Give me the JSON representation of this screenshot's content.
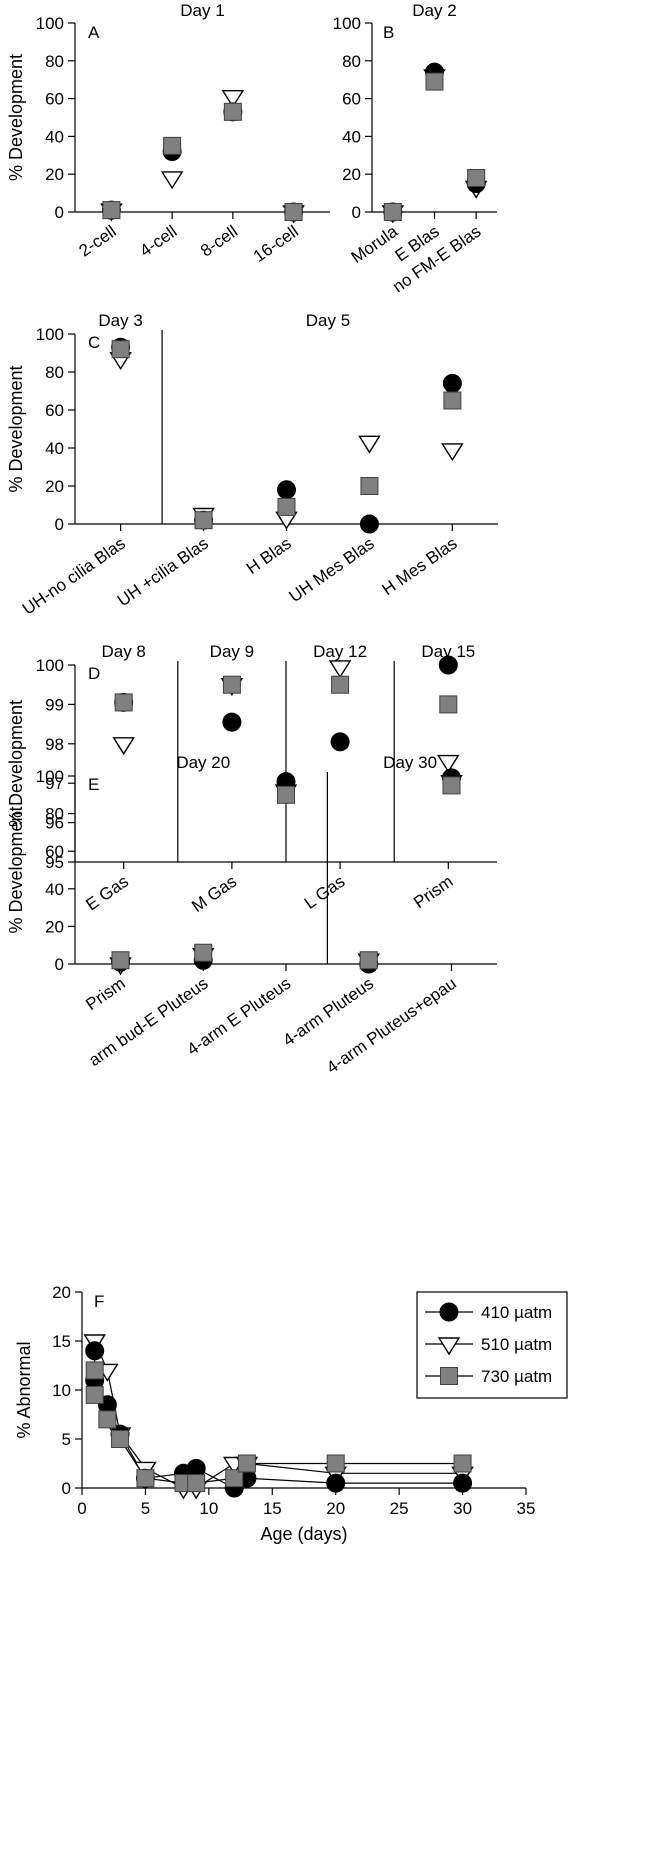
{
  "figure": {
    "legend": [
      {
        "label": "410 µatm",
        "marker": "circle",
        "color": "#000000"
      },
      {
        "label": "510 µatm",
        "marker": "triangle-down",
        "color": "#ffffff"
      },
      {
        "label": "730 µatm",
        "marker": "square",
        "color": "#808080"
      }
    ]
  },
  "chart_data": [
    {
      "id": "A",
      "type": "scatter",
      "panel_letter": "A",
      "ylabel": "% Development",
      "ylim": [
        0,
        100
      ],
      "yticks": [
        0,
        20,
        40,
        60,
        80,
        100
      ],
      "categories": [
        "2-cell",
        "4-cell",
        "8-cell",
        "16-cell"
      ],
      "day_labels": [
        {
          "text": "Day 1",
          "at": 1.5
        }
      ],
      "dividers": [],
      "series": [
        {
          "name": "410 µatm",
          "values": [
            1,
            32,
            53,
            0
          ]
        },
        {
          "name": "510 µatm",
          "values": [
            1,
            18,
            61,
            0
          ]
        },
        {
          "name": "730 µatm",
          "values": [
            1,
            35,
            53,
            0
          ]
        }
      ]
    },
    {
      "id": "B",
      "type": "scatter",
      "panel_letter": "B",
      "ylabel": "",
      "ylim": [
        0,
        100
      ],
      "yticks": [
        0,
        20,
        40,
        60,
        80,
        100
      ],
      "categories": [
        "Morula",
        "E Blas",
        "no FM-E Blas"
      ],
      "day_labels": [
        {
          "text": "Day 2",
          "at": 1
        }
      ],
      "dividers": [],
      "series": [
        {
          "name": "410 µatm",
          "values": [
            0,
            74,
            15
          ]
        },
        {
          "name": "510 µatm",
          "values": [
            0,
            72,
            13
          ]
        },
        {
          "name": "730 µatm",
          "values": [
            0,
            69,
            18
          ]
        }
      ]
    },
    {
      "id": "C",
      "type": "scatter",
      "panel_letter": "C",
      "ylabel": "% Development",
      "ylim": [
        0,
        100
      ],
      "yticks": [
        0,
        20,
        40,
        60,
        80,
        100
      ],
      "categories": [
        "UH-no cilia Blas",
        "UH +cilia Blas",
        "H Blas",
        "UH Mes Blas",
        "H Mes Blas"
      ],
      "day_labels": [
        {
          "text": "Day 3",
          "at": 0
        },
        {
          "text": "Day 5",
          "at": 2.5
        }
      ],
      "dividers": [
        0.5
      ],
      "series": [
        {
          "name": "410 µatm",
          "values": [
            93,
            2,
            18,
            0,
            74
          ]
        },
        {
          "name": "510 µatm",
          "values": [
            87,
            5,
            3,
            43,
            39
          ]
        },
        {
          "name": "730 µatm",
          "values": [
            92,
            2,
            9,
            20,
            65
          ]
        }
      ]
    },
    {
      "id": "D",
      "type": "scatter",
      "panel_letter": "D",
      "ylabel": "% Development",
      "ylim": [
        95,
        100
      ],
      "yticks": [
        95,
        96,
        97,
        98,
        99,
        100
      ],
      "categories": [
        "E Gas",
        "M Gas",
        "L Gas",
        "Prism"
      ],
      "day_labels": [
        {
          "text": "Day 8",
          "at": 0
        },
        {
          "text": "Day 9",
          "at": 1
        },
        {
          "text": "Day 12",
          "at": 2
        },
        {
          "text": "Day 15",
          "at": 3
        }
      ],
      "dividers": [
        0.5,
        1.5,
        2.5
      ],
      "series": [
        {
          "name": "410 µatm",
          "values": [
            99.05,
            98.55,
            98.05,
            100
          ]
        },
        {
          "name": "510 µatm",
          "values": [
            98,
            99.5,
            99.95,
            97.55
          ]
        },
        {
          "name": "730 µatm",
          "values": [
            99.05,
            99.5,
            99.5,
            99
          ]
        }
      ]
    },
    {
      "id": "E",
      "type": "scatter",
      "panel_letter": "E",
      "ylabel": "% Development",
      "ylim": [
        0,
        100
      ],
      "yticks": [
        0,
        20,
        40,
        60,
        80,
        100
      ],
      "categories": [
        "Prism",
        "arm bud-E Pluteus",
        "4-arm E Pluteus",
        "4-arm Pluteus",
        "4-arm Pluteus+epau"
      ],
      "day_labels": [
        {
          "text": "Day 20",
          "at": 1
        },
        {
          "text": "Day 30",
          "at": 3.5
        }
      ],
      "dividers": [
        2.5
      ],
      "series": [
        {
          "name": "410 µatm",
          "values": [
            1,
            2,
            97,
            0,
            99
          ]
        },
        {
          "name": "510 µatm",
          "values": [
            0,
            5,
            92,
            2,
            97
          ]
        },
        {
          "name": "730 µatm",
          "values": [
            2,
            6,
            90,
            2,
            95
          ]
        }
      ]
    },
    {
      "id": "F",
      "type": "line",
      "panel_letter": "F",
      "xlabel": "Age (days)",
      "ylabel": "% Abnormal",
      "xlim": [
        0,
        35
      ],
      "xticks": [
        0,
        5,
        10,
        15,
        20,
        25,
        30,
        35
      ],
      "ylim": [
        0,
        20
      ],
      "yticks": [
        0,
        5,
        10,
        15,
        20
      ],
      "legend_position": "top-right",
      "series": [
        {
          "name": "410 µatm",
          "x": [
            1,
            1,
            2,
            3,
            5,
            8,
            9,
            12,
            13,
            20,
            30
          ],
          "y": [
            14,
            11,
            8.5,
            5.5,
            1,
            1.5,
            2,
            0,
            1,
            0.5,
            0.5
          ]
        },
        {
          "name": "510 µatm",
          "x": [
            1,
            2,
            3,
            5,
            8,
            9,
            12,
            13,
            20,
            30
          ],
          "y": [
            15,
            12,
            5.5,
            2,
            0,
            0,
            2.5,
            2.5,
            1.5,
            1.5
          ]
        },
        {
          "name": "730 µatm",
          "x": [
            1,
            1,
            2,
            3,
            5,
            8,
            9,
            12,
            13,
            20,
            30
          ],
          "y": [
            12,
            9.5,
            7,
            5,
            1,
            0.5,
            0.5,
            1,
            2.5,
            2.5,
            2.5
          ]
        }
      ]
    }
  ]
}
